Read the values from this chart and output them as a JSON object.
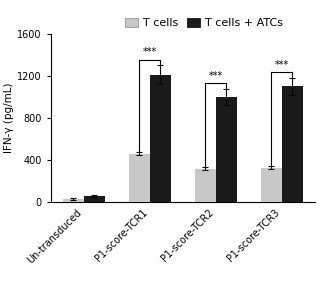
{
  "categories": [
    "Un-transduced",
    "P1-score-TCR1",
    "P1-score-TCR2",
    "P1-score-TCR3"
  ],
  "t_cells_values": [
    30,
    460,
    320,
    330
  ],
  "t_cells_errors": [
    8,
    15,
    18,
    15
  ],
  "t_cells_atcs_values": [
    60,
    1210,
    1000,
    1100
  ],
  "t_cells_atcs_errors": [
    12,
    90,
    75,
    80
  ],
  "t_cells_color": "#c8c8c8",
  "t_cells_atcs_color": "#1a1a1a",
  "ylabel": "IFN-γ (pg/mL)",
  "ylim": [
    0,
    1600
  ],
  "yticks": [
    0,
    400,
    800,
    1200,
    1600
  ],
  "bar_width": 0.32,
  "significance_labels": [
    "***",
    "***",
    "***"
  ],
  "legend_labels": [
    "T cells",
    "T cells + ATCs"
  ],
  "background_color": "#ffffff",
  "axis_fontsize": 7.5,
  "tick_fontsize": 7,
  "legend_fontsize": 8
}
